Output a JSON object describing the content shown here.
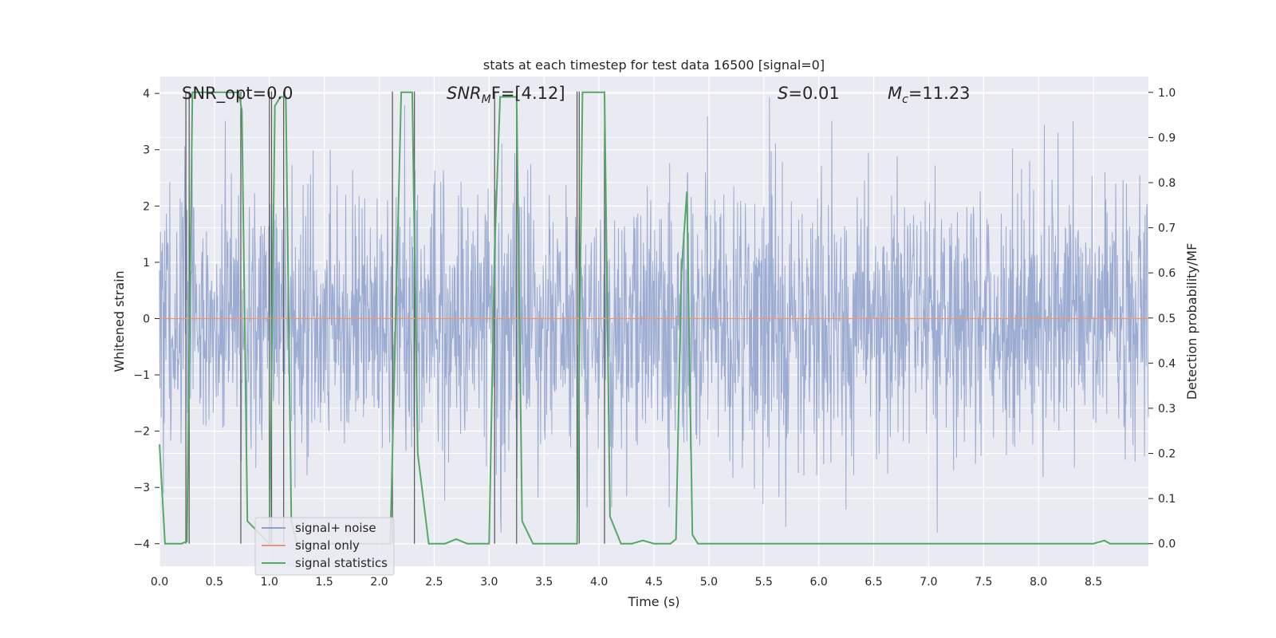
{
  "chart_data": {
    "type": "line",
    "title": "stats at each timestep for test data 16500 [signal=0]",
    "xlabel": "Time (s)",
    "ylabel_left": "Whitened strain",
    "ylabel_right": "Detection probability/MF",
    "xlim": [
      0.0,
      9.0
    ],
    "ylim_left": [
      -4.4,
      4.3
    ],
    "ylim_right": [
      -0.05,
      1.035
    ],
    "x_ticks": [
      "0.0",
      "0.5",
      "1.0",
      "1.5",
      "2.0",
      "2.5",
      "3.0",
      "3.5",
      "4.0",
      "4.5",
      "5.0",
      "5.5",
      "6.0",
      "6.5",
      "7.0",
      "7.5",
      "8.0",
      "8.5"
    ],
    "y_ticks_left": [
      "−4",
      "−3",
      "−2",
      "−1",
      "0",
      "1",
      "2",
      "3",
      "4"
    ],
    "y_ticks_right": [
      "0.0",
      "0.1",
      "0.2",
      "0.3",
      "0.4",
      "0.5",
      "0.6",
      "0.7",
      "0.8",
      "0.9",
      "1.0"
    ],
    "grid": true,
    "legend_position": "lower-left",
    "annotations": {
      "snr_opt": "SNR_opt=0.0",
      "snr_mf_main": "SNR",
      "snr_mf_sub": "M",
      "snr_mf_rest": "F=[4.12]",
      "s_italic": "S",
      "s_rest": "=0.01",
      "mc_main": "M",
      "mc_sub": "c",
      "mc_rest": "=11.23"
    },
    "series": [
      {
        "name": "signal+ noise",
        "color": "#8da0cb",
        "axis": "left",
        "description_of_values": "whitened strain noise, amplitude range approx -3.8 to 4.0"
      },
      {
        "name": "signal only",
        "color": "#e8967a",
        "axis": "left",
        "x": [
          0.0,
          9.0
        ],
        "y": [
          0.0,
          0.0
        ]
      },
      {
        "name": "signal statistics",
        "color": "#55a868",
        "axis": "right",
        "x": [
          0.0,
          0.05,
          0.2,
          0.25,
          0.3,
          0.35,
          0.72,
          0.75,
          0.8,
          1.0,
          1.05,
          1.1,
          1.15,
          1.2,
          1.25,
          2.1,
          2.15,
          2.2,
          2.3,
          2.35,
          2.45,
          2.6,
          2.7,
          2.8,
          2.9,
          3.0,
          3.05,
          3.1,
          3.15,
          3.25,
          3.3,
          3.4,
          3.7,
          3.8,
          3.85,
          3.9,
          4.05,
          4.1,
          4.2,
          4.3,
          4.4,
          4.5,
          4.65,
          4.7,
          4.75,
          4.8,
          4.85,
          4.9,
          4.95,
          5.0,
          8.0,
          8.5,
          8.6,
          8.65,
          8.7,
          9.0
        ],
        "y": [
          0.22,
          0.0,
          0.0,
          0.005,
          1.0,
          1.0,
          1.0,
          0.96,
          0.05,
          0.0,
          0.97,
          0.99,
          0.99,
          0.05,
          0.0,
          0.0,
          0.5,
          1.0,
          1.0,
          0.2,
          0.0,
          0.0,
          0.01,
          0.0,
          0.0,
          0.0,
          0.65,
          0.99,
          0.99,
          0.99,
          0.05,
          0.0,
          0.0,
          0.0,
          1.0,
          1.0,
          1.0,
          0.06,
          0.0,
          0.0,
          0.007,
          0.0,
          0.0,
          0.01,
          0.6,
          0.78,
          0.02,
          0.0,
          0.0,
          0.0,
          0.0,
          0.0,
          0.007,
          0.0,
          0.0,
          0.0
        ]
      }
    ],
    "vertical_markers_x": [
      0.24,
      0.27,
      0.74,
      1.0,
      1.02,
      1.13,
      2.12,
      2.32,
      3.05,
      3.25,
      3.8,
      3.82,
      4.05
    ]
  }
}
